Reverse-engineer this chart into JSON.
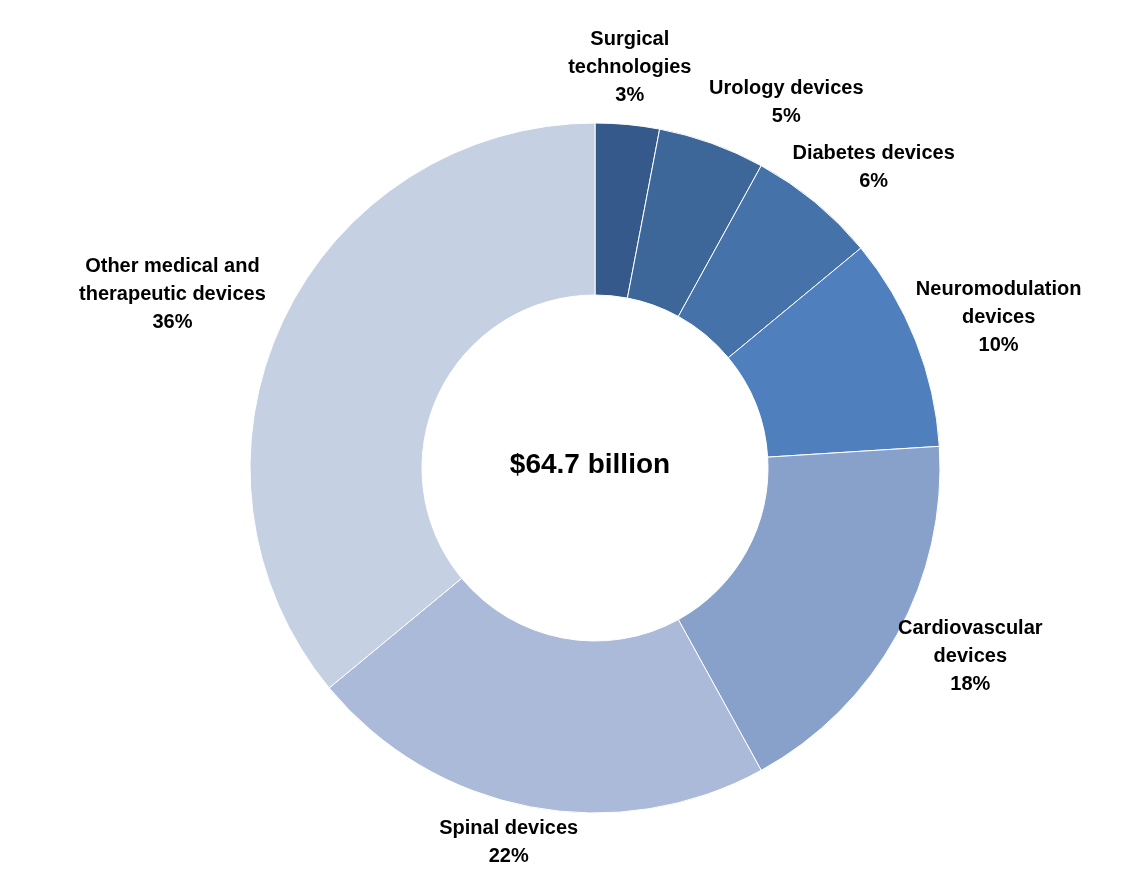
{
  "chart_data": {
    "type": "donut",
    "categories": [
      "Surgical technologies",
      "Urology devices",
      "Diabetes devices",
      "Neuromodulation devices",
      "Cardiovascular devices",
      "Spinal devices",
      "Other medical and therapeutic devices"
    ],
    "values": [
      3,
      5,
      6,
      10,
      18,
      22,
      36
    ],
    "colors": [
      "#34598a",
      "#3d6699",
      "#4672aa",
      "#4f80bd",
      "#87a1cb",
      "#abbad8",
      "#c5d0e3"
    ],
    "value_labels": [
      "3%",
      "5%",
      "6%",
      "10%",
      "18%",
      "22%",
      "36%"
    ],
    "annotations": [
      "$64.7 billion"
    ]
  }
}
